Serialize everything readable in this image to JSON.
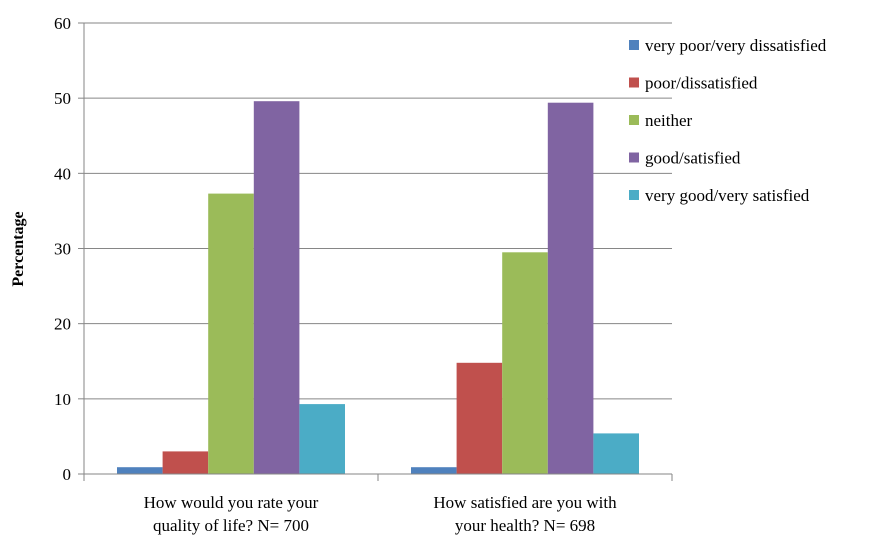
{
  "chart_data": {
    "type": "bar",
    "categories": [
      [
        "How would you rate your",
        "quality of life? N= 700"
      ],
      [
        "How satisfied are you with",
        "your health? N= 698"
      ]
    ],
    "series": [
      {
        "name": "very poor/very dissatisfied",
        "color": "#4F81BD",
        "values": [
          0.9,
          0.9
        ]
      },
      {
        "name": "poor/dissatisfied",
        "color": "#C0504D",
        "values": [
          3.0,
          14.8
        ]
      },
      {
        "name": "neither",
        "color": "#9BBB59",
        "values": [
          37.3,
          29.5
        ]
      },
      {
        "name": "good/satisfied",
        "color": "#8064A2",
        "values": [
          49.6,
          49.4
        ]
      },
      {
        "name": "very good/very satisfied",
        "color": "#4BACC6",
        "values": [
          9.3,
          5.4
        ]
      }
    ],
    "title": "",
    "xlabel": "",
    "ylabel": "Percentage",
    "ylim": [
      0,
      60
    ],
    "yticks": [
      0,
      10,
      20,
      30,
      40,
      50,
      60
    ],
    "grid": true,
    "legend_position": "right"
  }
}
